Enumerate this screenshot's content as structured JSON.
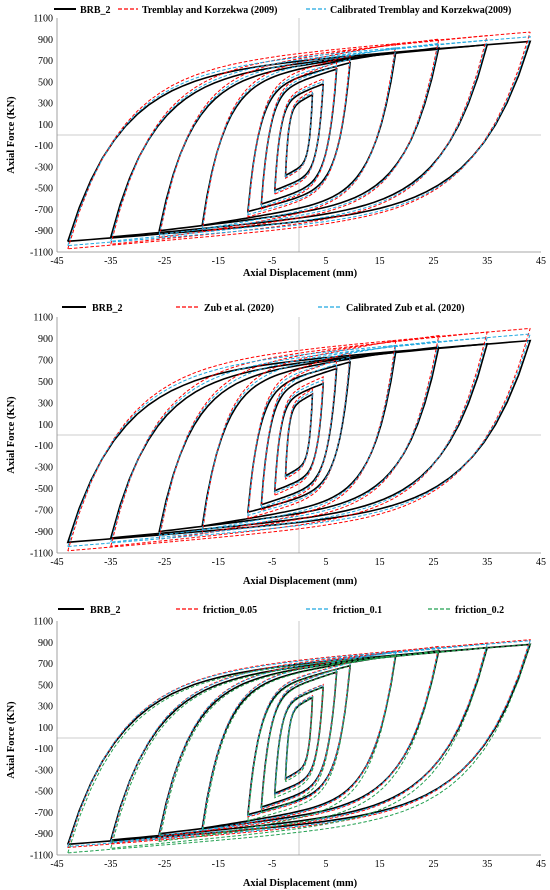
{
  "charts": [
    {
      "type": "line",
      "legend": [
        {
          "name": "BRB_2",
          "color": "#000000",
          "dash": "solid"
        },
        {
          "name": "Tremblay and Korzekwa (2009)",
          "color": "#ff0000",
          "dash": "dashed"
        },
        {
          "name": "Calibrated Tremblay and Korzekwa(2009)",
          "color": "#1fa8e0",
          "dash": "dashed"
        }
      ],
      "xlabel": "Axial Displacement (mm)",
      "ylabel": "Axial Force (KN)",
      "xlim": [
        -45,
        45
      ],
      "ylim": [
        -1100,
        1100
      ],
      "xticks": [
        -45,
        -35,
        -25,
        -15,
        -5,
        5,
        15,
        25,
        35,
        45
      ],
      "yticks": [
        1100,
        900,
        700,
        500,
        300,
        100,
        -100,
        -300,
        -500,
        -700,
        -900,
        -1100
      ]
    },
    {
      "type": "line",
      "legend": [
        {
          "name": "BRB_2",
          "color": "#000000",
          "dash": "solid"
        },
        {
          "name": "Zub et al. (2020)",
          "color": "#ff0000",
          "dash": "dashed"
        },
        {
          "name": "Calibrated Zub et al. (2020)",
          "color": "#1fa8e0",
          "dash": "dashed"
        }
      ],
      "xlabel": "Axial Displacement (mm)",
      "ylabel": "Axial Force (KN)",
      "xlim": [
        -45,
        45
      ],
      "ylim": [
        -1100,
        1100
      ],
      "xticks": [
        -45,
        -35,
        -25,
        -15,
        -5,
        5,
        15,
        25,
        35,
        45
      ],
      "yticks": [
        1100,
        900,
        700,
        500,
        300,
        100,
        -100,
        -300,
        -500,
        -700,
        -900,
        -1100
      ]
    },
    {
      "type": "line",
      "legend": [
        {
          "name": "BRB_2",
          "color": "#000000",
          "dash": "solid"
        },
        {
          "name": "friction_0.05",
          "color": "#ff0000",
          "dash": "dashed"
        },
        {
          "name": "friction_0.1",
          "color": "#1fa8e0",
          "dash": "dashed"
        },
        {
          "name": "friction_0.2",
          "color": "#22a050",
          "dash": "dashed"
        }
      ],
      "xlabel": "Axial Displacement (mm)",
      "ylabel": "Axial Force (KN)",
      "xlim": [
        -45,
        45
      ],
      "ylim": [
        -1100,
        1100
      ],
      "xticks": [
        -45,
        -35,
        -25,
        -15,
        -5,
        5,
        15,
        25,
        35,
        45
      ],
      "yticks": [
        1100,
        900,
        700,
        500,
        300,
        100,
        -100,
        -300,
        -500,
        -700,
        -900,
        -1100
      ]
    }
  ],
  "chart_data": [
    {
      "type": "line",
      "title": "",
      "xlabel": "Axial Displacement (mm)",
      "ylabel": "Axial Force (KN)",
      "xlim": [
        -45,
        45
      ],
      "ylim": [
        -1100,
        1100
      ],
      "grid": false,
      "legend_position": "top",
      "cycles": [
        {
          "amplitude_pos": 2.5,
          "amplitude_neg": -2.5,
          "force_pos": 380,
          "force_neg": -380
        },
        {
          "amplitude_pos": 4.5,
          "amplitude_neg": -4.5,
          "force_pos": 480,
          "force_neg": -520
        },
        {
          "amplitude_pos": 7,
          "amplitude_neg": -7,
          "force_pos": 620,
          "force_neg": -650
        },
        {
          "amplitude_pos": 9.5,
          "amplitude_neg": -9.5,
          "force_pos": 680,
          "force_neg": -720
        },
        {
          "amplitude_pos": 18,
          "amplitude_neg": -18,
          "force_pos": 780,
          "force_neg": -850
        },
        {
          "amplitude_pos": 26,
          "amplitude_neg": -26,
          "force_pos": 820,
          "force_neg": -900
        },
        {
          "amplitude_pos": 35,
          "amplitude_neg": -35,
          "force_pos": 850,
          "force_neg": -960
        },
        {
          "amplitude_pos": 43,
          "amplitude_neg": -43,
          "force_pos": 880,
          "force_neg": -1000
        }
      ],
      "series": [
        {
          "name": "BRB_2",
          "force_scale_pos": 1.0,
          "force_scale_neg": 1.0
        },
        {
          "name": "Tremblay and Korzekwa (2009)",
          "force_scale_pos": 1.1,
          "force_scale_neg": 1.07
        },
        {
          "name": "Calibrated Tremblay and Korzekwa(2009)",
          "force_scale_pos": 1.05,
          "force_scale_neg": 1.04
        }
      ]
    },
    {
      "type": "line",
      "title": "",
      "xlabel": "Axial Displacement (mm)",
      "ylabel": "Axial Force (KN)",
      "xlim": [
        -45,
        45
      ],
      "ylim": [
        -1100,
        1100
      ],
      "grid": false,
      "legend_position": "top",
      "cycles": [
        {
          "amplitude_pos": 2.5,
          "amplitude_neg": -2.5,
          "force_pos": 380,
          "force_neg": -380
        },
        {
          "amplitude_pos": 4.5,
          "amplitude_neg": -4.5,
          "force_pos": 480,
          "force_neg": -520
        },
        {
          "amplitude_pos": 7,
          "amplitude_neg": -7,
          "force_pos": 620,
          "force_neg": -650
        },
        {
          "amplitude_pos": 9.5,
          "amplitude_neg": -9.5,
          "force_pos": 680,
          "force_neg": -720
        },
        {
          "amplitude_pos": 18,
          "amplitude_neg": -18,
          "force_pos": 780,
          "force_neg": -850
        },
        {
          "amplitude_pos": 26,
          "amplitude_neg": -26,
          "force_pos": 820,
          "force_neg": -900
        },
        {
          "amplitude_pos": 35,
          "amplitude_neg": -35,
          "force_pos": 850,
          "force_neg": -960
        },
        {
          "amplitude_pos": 43,
          "amplitude_neg": -43,
          "force_pos": 880,
          "force_neg": -1000
        }
      ],
      "series": [
        {
          "name": "BRB_2",
          "force_scale_pos": 1.0,
          "force_scale_neg": 1.0
        },
        {
          "name": "Zub et al. (2020)",
          "force_scale_pos": 1.13,
          "force_scale_neg": 1.08
        },
        {
          "name": "Calibrated Zub et al. (2020)",
          "force_scale_pos": 1.07,
          "force_scale_neg": 1.04
        }
      ]
    },
    {
      "type": "line",
      "title": "",
      "xlabel": "Axial Displacement (mm)",
      "ylabel": "Axial Force (KN)",
      "xlim": [
        -45,
        45
      ],
      "ylim": [
        -1100,
        1100
      ],
      "grid": false,
      "legend_position": "top",
      "cycles": [
        {
          "amplitude_pos": 2.5,
          "amplitude_neg": -2.5,
          "force_pos": 380,
          "force_neg": -380
        },
        {
          "amplitude_pos": 4.5,
          "amplitude_neg": -4.5,
          "force_pos": 480,
          "force_neg": -520
        },
        {
          "amplitude_pos": 7,
          "amplitude_neg": -7,
          "force_pos": 620,
          "force_neg": -650
        },
        {
          "amplitude_pos": 9.5,
          "amplitude_neg": -9.5,
          "force_pos": 680,
          "force_neg": -720
        },
        {
          "amplitude_pos": 18,
          "amplitude_neg": -18,
          "force_pos": 780,
          "force_neg": -850
        },
        {
          "amplitude_pos": 26,
          "amplitude_neg": -26,
          "force_pos": 820,
          "force_neg": -900
        },
        {
          "amplitude_pos": 35,
          "amplitude_neg": -35,
          "force_pos": 850,
          "force_neg": -960
        },
        {
          "amplitude_pos": 43,
          "amplitude_neg": -43,
          "force_pos": 880,
          "force_neg": -1000
        }
      ],
      "series": [
        {
          "name": "BRB_2",
          "force_scale_pos": 1.0,
          "force_scale_neg": 1.0
        },
        {
          "name": "friction_0.05",
          "force_scale_pos": 1.05,
          "force_scale_neg": 1.03
        },
        {
          "name": "friction_0.1",
          "force_scale_pos": 1.04,
          "force_scale_neg": 1.02
        },
        {
          "name": "friction_0.2",
          "force_scale_pos": 1.0,
          "force_scale_neg": 1.08
        }
      ]
    }
  ]
}
